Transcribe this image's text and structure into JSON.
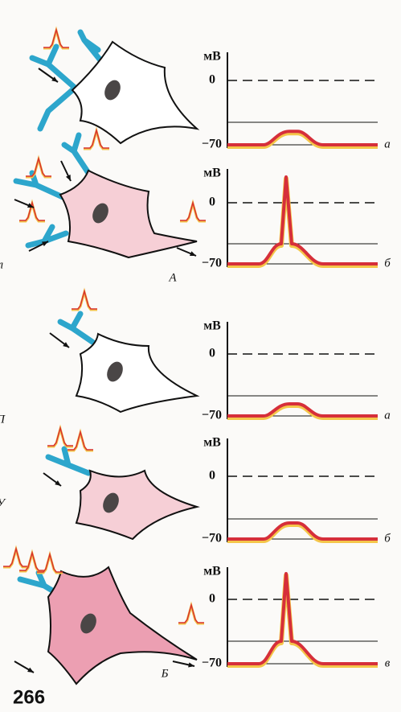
{
  "panels": [
    {
      "unit": "мВ",
      "zero": "0",
      "rest": "−70",
      "label": "а"
    },
    {
      "unit": "мВ",
      "zero": "0",
      "rest": "−70",
      "label": "б"
    },
    {
      "unit": "мВ",
      "zero": "0",
      "rest": "−70",
      "label": "а"
    },
    {
      "unit": "мВ",
      "zero": "0",
      "rest": "−70",
      "label": "б"
    },
    {
      "unit": "мВ",
      "zero": "0",
      "rest": "−70",
      "label": "в"
    }
  ],
  "groups": [
    "А",
    "Б"
  ],
  "margin_letters": [
    "л",
    "П",
    "У"
  ],
  "page_number": "266"
}
